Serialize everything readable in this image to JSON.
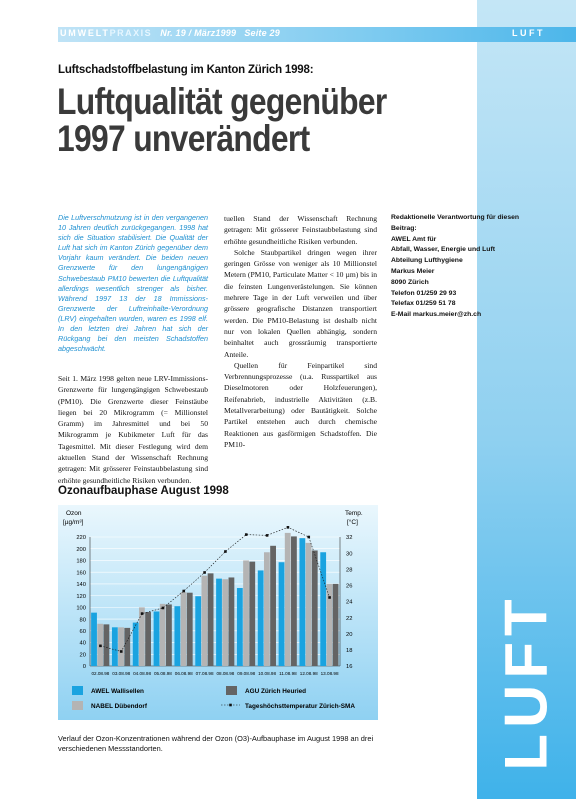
{
  "header": {
    "brand_part1": "UMWELT",
    "brand_part2": "PRAXIS",
    "issue": "Nr. 19 / März1999",
    "page": "Seite 29",
    "section": "LUFT"
  },
  "article": {
    "kicker": "Luftschadstoffbelastung im Kanton Zürich 1998:",
    "title_line1": "Luftqualität gegenüber",
    "title_line2": "1997 unverändert",
    "lead": "Die Luftverschmutzung ist in den vergangenen 10 Jahren deutlich zurückgegangen. 1998 hat sich die Situation stabilisiert. Die Qualität der Luft hat sich im Kanton Zürich gegenüber dem Vorjahr kaum verändert. Die beiden neuen Grenzwerte für den lungengängigen Schwebestaub PM10 bewerten die Luftqualität allerdings wesentlich strenger als bisher. Während 1997 13 der 18 Immissions-Grenzwerte der Luftreinhalte-Verordnung (LRV) eingehalten wurden, waren es 1998 elf. In den letzten drei Jahren hat sich der Rückgang bei den meisten Schadstoffen abgeschwächt.",
    "body_col1": "Seit 1. März 1998 gelten neue LRV-Immissions-Grenzwerte für lungengängigen Schwebestaub (PM10). Die Grenzwerte dieser Feinstäube liegen bei 20 Mikrogramm (= Millionstel Gramm) im Jahresmittel und bei 50 Mikrogramm je Kubikmeter Luft für das Tagesmittel. Mit dieser Festlegung wird dem aktuellen Stand der Wissenschaft Rechnung getragen: Mit grösserer Feinstaubbelastung sind erhöhte gesundheitliche Risiken verbunden.",
    "body_col2_p1": "tuellen Stand der Wissenschaft Rechnung getragen: Mit grösserer Feinstaubbelastung sind erhöhte gesundheitliche Risiken verbunden.",
    "body_col2_p2": "Solche Staubpartikel dringen wegen ihrer geringen Grösse von weniger als 10 Millionstel Metern (PM10, Particulate Matter < 10 µm) bis in die feinsten Lungenverästelungen. Sie können mehrere Tage in der Luft verweilen und über grössere geografische Distanzen transportiert werden. Die PM10-Belastung ist deshalb nicht nur von lokalen Quellen abhängig, sondern beinhaltet auch grossräumig transportierte Anteile.",
    "body_col2_p3": "Quellen für Feinpartikel sind Verbrennungsprozesse (u.a. Russpartikel aus Dieselmotoren oder Holzfeuerungen), Reifenabrieb, industrielle Aktivitäten (z.B. Metallverarbeitung) oder Bautätigkeit. Solche Partikel entstehen auch durch chemische Reaktionen aus gasförmigen Schadstoffen. Die PM10-"
  },
  "contact": {
    "lines": [
      "Redaktionelle Verantwortung für diesen",
      "Beitrag:",
      "AWEL Amt für",
      "Abfall, Wasser, Energie und Luft",
      "Abteilung Lufthygiene",
      "Markus Meier",
      "8090 Zürich",
      "Telefon 01/259 29 93",
      "Telefax 01/259 51 78",
      "E-Mail markus.meier@zh.ch"
    ]
  },
  "chart_section": {
    "title": "Ozonaufbauphase August 1998",
    "caption": "Verlauf der Ozon-Konzentrationen während der Ozon (O3)-Aufbauphase im August 1998 an drei verschiedenen Messstandorten."
  },
  "chart_data": {
    "type": "bar",
    "categories": [
      "02.08.98",
      "03.08.98",
      "04.08.98",
      "05.08.98",
      "06.08.98",
      "07.08.98",
      "08.08.98",
      "09.08.98",
      "10.08.98",
      "11.08.98",
      "12.08.98",
      "13.08.98"
    ],
    "series": [
      {
        "name": "AWEL Wallisellen",
        "color": "#1aa3e0",
        "values": [
          91,
          66,
          74,
          93,
          102,
          119,
          149,
          133,
          163,
          177,
          218,
          194
        ]
      },
      {
        "name": "NABEL Dübendorf",
        "color": "#b4b4b4",
        "values": [
          72,
          66,
          100,
          106,
          126,
          154,
          148,
          180,
          194,
          227,
          210,
          140
        ]
      },
      {
        "name": "AGU Zürich Heuried",
        "color": "#646464",
        "values": [
          71,
          65,
          92,
          105,
          125,
          158,
          151,
          178,
          205,
          221,
          197,
          140
        ]
      }
    ],
    "line_series": {
      "name": "Tageshöchsttemperatur Zürich-SMA",
      "values": [
        18.5,
        17.8,
        22.5,
        23.2,
        25.3,
        27.6,
        30.2,
        32.3,
        32.2,
        33.2,
        32.0,
        24.5
      ]
    },
    "ylabel": "Ozon [µg/m3]",
    "ylabel_line1": "Ozon",
    "ylabel_line2": "[µg/m³]",
    "y2label_line1": "Temp.",
    "y2label_line2": "[°C]",
    "ylim": [
      0,
      220
    ],
    "yticks": [
      "0",
      "20",
      "40",
      "60",
      "80",
      "100",
      "120",
      "140",
      "160",
      "180",
      "200",
      "220"
    ],
    "y2lim": [
      16,
      32
    ],
    "y2ticks": [
      "16",
      "18",
      "20",
      "22",
      "24",
      "26",
      "28",
      "30",
      "32"
    ],
    "grid": true,
    "legend_position": "bottom"
  },
  "colors": {
    "accent_blue": "#1d8fd0",
    "header_gradient": "#7ecbf0"
  }
}
